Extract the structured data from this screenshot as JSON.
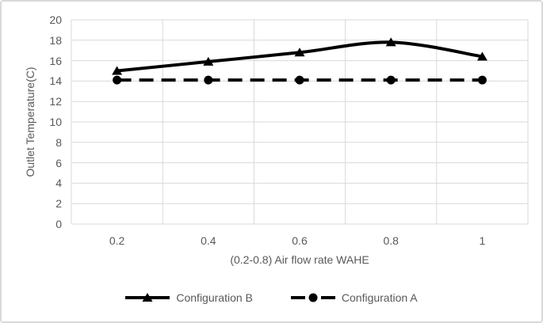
{
  "colors": {
    "line": "#000000",
    "grid": "#d9d9d9",
    "text": "#595959",
    "border": "#d9d9d9",
    "background": "#ffffff"
  },
  "chart_data": {
    "type": "line",
    "title": "",
    "xlabel": "(0.2-0.8) Air flow rate WAHE",
    "ylabel": "Outlet Temperature(C)",
    "x": [
      0.2,
      0.4,
      0.6,
      0.8,
      1
    ],
    "x_tick_labels": [
      "0.2",
      "0.4",
      "0.6",
      "0.8",
      "1"
    ],
    "y_ticks": [
      0,
      2,
      4,
      6,
      8,
      10,
      12,
      14,
      16,
      18,
      20
    ],
    "ylim": [
      0,
      20
    ],
    "grid": true,
    "legend_position": "bottom",
    "series": [
      {
        "name": "Configuration B",
        "marker": "triangle",
        "line_style": "solid",
        "smooth": true,
        "values": [
          15.0,
          15.9,
          16.8,
          17.8,
          16.4
        ]
      },
      {
        "name": "Configuration A",
        "marker": "circle",
        "line_style": "dashed",
        "smooth": false,
        "values": [
          14.1,
          14.1,
          14.1,
          14.1,
          14.1
        ]
      }
    ]
  }
}
